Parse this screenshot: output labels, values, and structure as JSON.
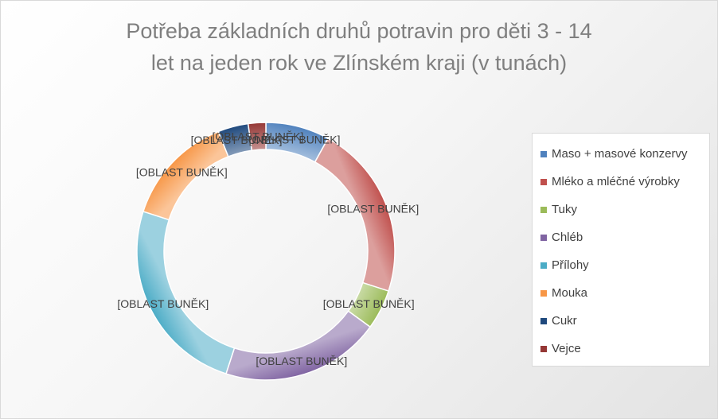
{
  "chart_data": {
    "type": "pie",
    "style": "doughnut",
    "title": "Potřeba základních druhů potravin pro děti 3 - 14 let na jeden rok ve Zlínském kraji (v tunách)",
    "title_lines": [
      "Potřeba základních druhů potravin pro děti 3 - 14",
      "let na jeden rok ve Zlínském kraji (v tunách)"
    ],
    "categories": [
      "Maso + masové konzervy",
      "Mléko a mléčné výrobky",
      "Tuky",
      "Chléb",
      "Přílohy",
      "Mouka",
      "Cukr",
      "Vejce"
    ],
    "values": [
      8,
      22,
      5,
      20,
      25,
      14,
      3.8,
      2.2
    ],
    "colors": [
      "#4f81bd",
      "#c0504d",
      "#9bbb59",
      "#8064a2",
      "#4bacc6",
      "#f79646",
      "#1f497d",
      "#953735"
    ],
    "data_label": "[OBLAST BUNĚK]",
    "legend": "right"
  }
}
